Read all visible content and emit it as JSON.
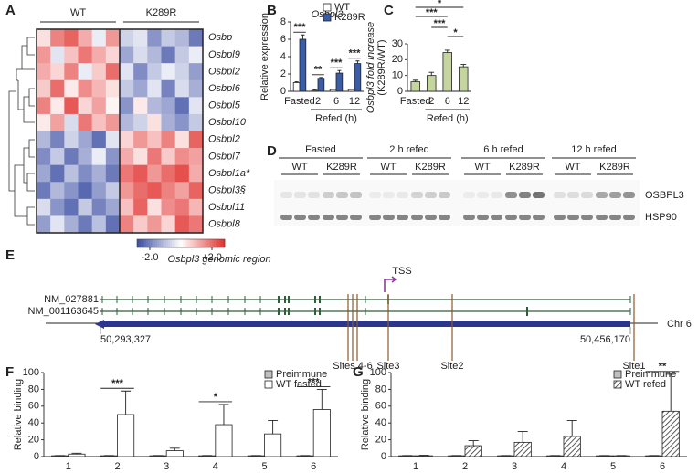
{
  "panel_labels": [
    "A",
    "B",
    "C",
    "D",
    "E",
    "F",
    "G"
  ],
  "chart_data": [
    {
      "type": "heatmap",
      "column_groups": [
        "WT",
        "K289R"
      ],
      "rows": [
        "Osbp",
        "Osbpl9",
        "Osbpl2",
        "Osbpl6",
        "Osbpl5",
        "Osbpl10",
        "Osbpl2",
        "Osbpl7",
        "Osbpl1a*",
        "Osbpl3§",
        "Osbpl11",
        "Osbpl8"
      ],
      "values": [
        [
          0.3,
          1.2,
          1.5,
          0.8,
          -0.2,
          1.0,
          -0.5,
          -0.3,
          -1.2,
          -0.6,
          -0.8,
          -1.5
        ],
        [
          1.0,
          -0.3,
          0.6,
          1.3,
          0.8,
          0.4,
          -1.0,
          -0.4,
          -0.8,
          -1.5,
          -0.6,
          -0.2
        ],
        [
          0.8,
          0.4,
          1.2,
          -0.2,
          0.5,
          1.4,
          -0.3,
          -1.3,
          -0.6,
          -0.2,
          -0.5,
          -1.1
        ],
        [
          0.5,
          1.4,
          0.2,
          1.1,
          0.7,
          0.3,
          -0.6,
          -1.0,
          -0.3,
          -1.4,
          -0.4,
          -0.9
        ],
        [
          1.2,
          0.2,
          1.6,
          0.4,
          0.9,
          0.1,
          -1.2,
          0.2,
          -0.8,
          -1.0,
          -1.6,
          -0.3
        ],
        [
          0.2,
          0.9,
          -0.4,
          1.3,
          0.6,
          1.0,
          -0.8,
          -0.5,
          0.3,
          -0.9,
          -1.2,
          -0.6
        ],
        [
          -0.8,
          -1.4,
          -0.5,
          -1.0,
          -1.6,
          -0.3,
          0.4,
          1.0,
          0.6,
          1.2,
          0.3,
          1.5
        ],
        [
          -1.3,
          -0.6,
          -1.5,
          -0.9,
          -0.2,
          -1.2,
          0.8,
          0.3,
          1.3,
          0.5,
          1.1,
          0.9
        ],
        [
          -1.0,
          -1.6,
          -0.7,
          -1.3,
          -0.9,
          -1.5,
          1.3,
          1.6,
          1.0,
          1.4,
          1.7,
          0.8
        ],
        [
          -1.5,
          -0.8,
          -1.2,
          -1.7,
          -1.1,
          -0.6,
          1.0,
          1.4,
          1.6,
          1.2,
          0.9,
          1.5
        ],
        [
          -0.4,
          -1.2,
          -1.6,
          -0.6,
          -1.4,
          -1.0,
          0.6,
          1.5,
          0.3,
          1.1,
          1.3,
          0.7
        ],
        [
          -1.1,
          -0.3,
          -0.9,
          -1.5,
          -0.7,
          -1.6,
          1.2,
          0.5,
          1.0,
          0.4,
          1.6,
          1.3
        ]
      ],
      "zlim": [
        -2,
        2
      ],
      "zticks": [
        {
          "value": -2,
          "label": "-2.0"
        },
        {
          "value": 2,
          "label": "+2.0"
        }
      ],
      "low_color": "#3b4ea3",
      "high_color": "#e0302c",
      "highlight_row": 9,
      "highlight_color": "#e8262c"
    },
    {
      "type": "bar",
      "title": "Osbpl3",
      "ylabel": [
        "Relative expression"
      ],
      "categories": [
        "Fasted",
        "2",
        "6",
        "12"
      ],
      "x_group_label": "Refed (h)",
      "series": [
        {
          "name": "WT",
          "color": "#ffffff",
          "values": [
            1.0,
            0.1,
            0.2,
            0.2
          ],
          "errors": [
            0.1,
            0.05,
            0.05,
            0.05
          ]
        },
        {
          "name": "K289R",
          "color": "#3b5ca8",
          "values": [
            6.0,
            1.5,
            2.1,
            3.2
          ],
          "errors": [
            0.5,
            0.1,
            0.3,
            0.3
          ]
        }
      ],
      "significance": [
        "***",
        "**",
        "***",
        "***"
      ],
      "ylim": [
        0,
        8
      ],
      "yticks": [
        0,
        2,
        4,
        6,
        8
      ],
      "legend": "top-right"
    },
    {
      "type": "bar",
      "ylabel": [
        "Osbpl3 fold increase",
        "(K289R/WT)"
      ],
      "categories": [
        "Fasted",
        "2",
        "6",
        "12"
      ],
      "x_group_label": "Refed (h)",
      "series": [
        {
          "color": "#c4d59f",
          "values": [
            6,
            10,
            24.5,
            15.5
          ],
          "errors": [
            1,
            2,
            1.5,
            1.5
          ]
        }
      ],
      "brackets": [
        {
          "from": 0,
          "to": 3,
          "text": "*"
        },
        {
          "from": 0,
          "to": 2,
          "text": "***"
        },
        {
          "from": 1,
          "to": 2,
          "text": "***"
        },
        {
          "from": 2,
          "to": 3,
          "text": "*"
        }
      ],
      "ylim": [
        0,
        30
      ],
      "yticks": [
        0,
        10,
        20,
        30
      ]
    },
    {
      "type": "bar",
      "ylabel": [
        "Relative binding"
      ],
      "categories": [
        "1",
        "2",
        "3",
        "4",
        "5",
        "6"
      ],
      "series": [
        {
          "name": "Preimmune",
          "color": "#bfbfbf",
          "values": [
            1,
            1,
            1,
            1,
            1,
            1
          ],
          "errors": [
            0.3,
            0.3,
            0.3,
            0.3,
            0.3,
            0.3
          ]
        },
        {
          "name": "WT fasted",
          "color": "#ffffff",
          "values": [
            3,
            50,
            7,
            38,
            27,
            56
          ],
          "errors": [
            1,
            28,
            3,
            24,
            16,
            24
          ]
        }
      ],
      "significance": [
        null,
        "***",
        null,
        "*",
        null,
        "***"
      ],
      "ylim": [
        0,
        100
      ],
      "yticks": [
        0,
        20,
        40,
        60,
        80,
        100
      ],
      "legend": "top-right"
    },
    {
      "type": "bar",
      "ylabel": [
        "Relative binding"
      ],
      "categories": [
        "1",
        "2",
        "3",
        "4",
        "5",
        "6"
      ],
      "series": [
        {
          "name": "Preimmune",
          "color": "#bfbfbf",
          "values": [
            1,
            1,
            1,
            1,
            1,
            1
          ],
          "errors": [
            0.3,
            0.3,
            0.3,
            0.3,
            0.3,
            0.3
          ]
        },
        {
          "name": "WT refed",
          "color": "#ffffff",
          "pattern": "hatch",
          "values": [
            1,
            13,
            17,
            24,
            1,
            54
          ],
          "errors": [
            0.5,
            6,
            13,
            19,
            0.3,
            44
          ]
        }
      ],
      "significance": [
        null,
        null,
        null,
        null,
        null,
        "**"
      ],
      "ylim": [
        0,
        100
      ],
      "yticks": [
        0,
        20,
        40,
        60,
        80,
        100
      ],
      "legend": "top-right"
    }
  ],
  "blot": {
    "groups": [
      {
        "name": "Fasted",
        "lanes": [
          "WT",
          "K289R"
        ]
      },
      {
        "name": "2 h refed",
        "lanes": [
          "WT",
          "K289R"
        ]
      },
      {
        "name": "6 h refed",
        "lanes": [
          "WT",
          "K289R"
        ]
      },
      {
        "name": "12 h refed",
        "lanes": [
          "WT",
          "K289R"
        ]
      }
    ],
    "bands": [
      "OSBPL3",
      "HSP90"
    ]
  },
  "genome": {
    "title": "Osbpl3 genomic region",
    "transcripts": [
      "NM_027881",
      "NM_001163645"
    ],
    "tss": "TSS",
    "chromosome": "Chr 6",
    "coordinates": [
      "50,293,327",
      "50,456,170"
    ],
    "sites": [
      "Sites 4-6",
      "Site3",
      "Site2",
      "Site1"
    ]
  }
}
